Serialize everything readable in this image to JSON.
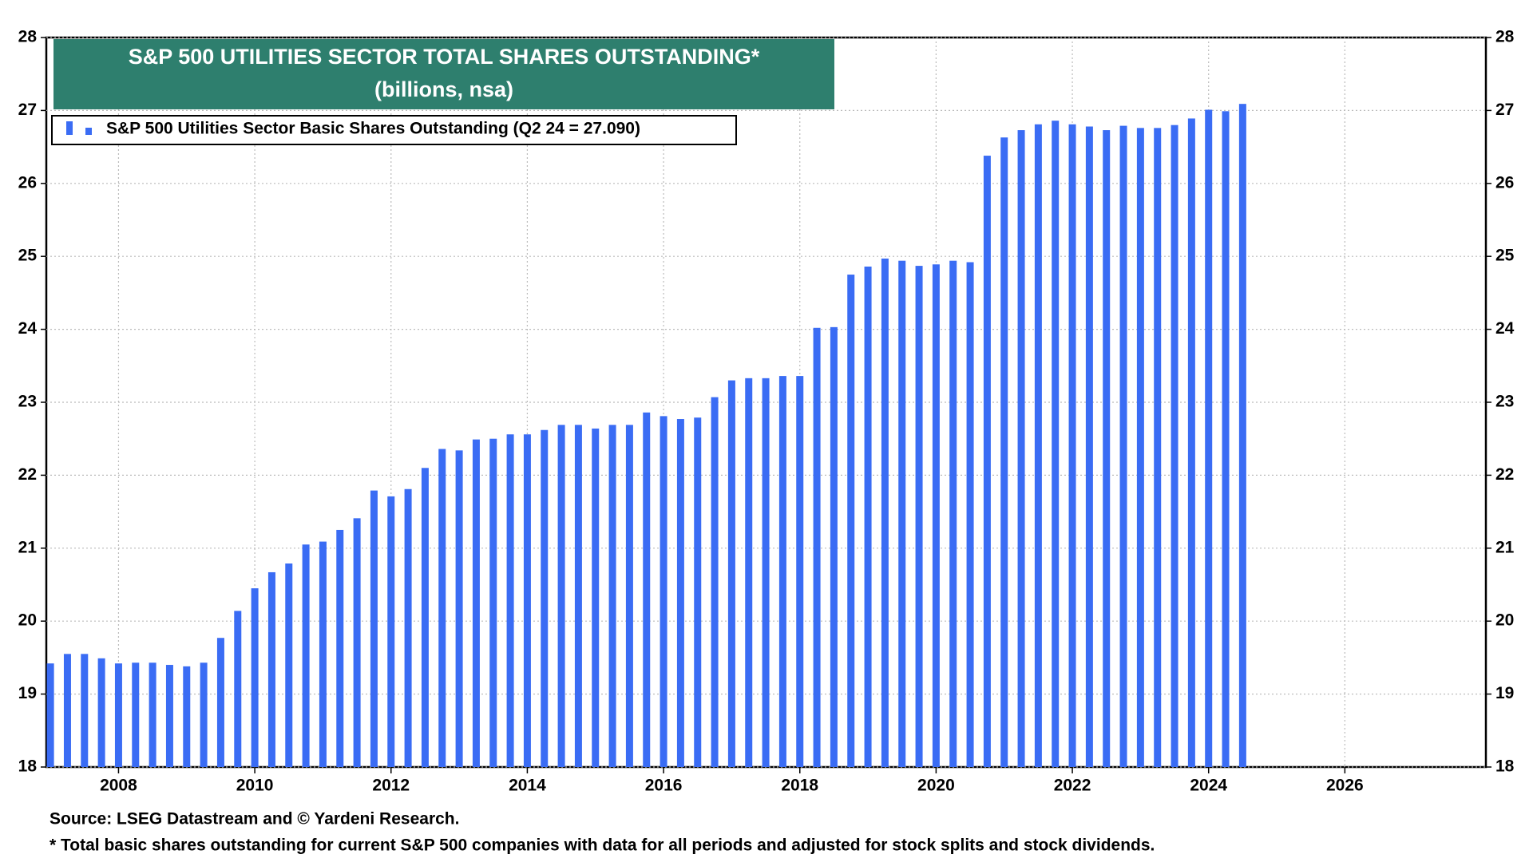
{
  "chart_data": {
    "type": "bar",
    "title": "S&P 500 UTILITIES SECTOR TOTAL SHARES OUTSTANDING*",
    "subtitle": "(billions, nsa)",
    "source": "Source: LSEG Datastream and © Yardeni Research.",
    "note": "* Total basic shares outstanding for current S&P 500 companies with data for all periods and adjusted for stock splits and stock dividends.",
    "x": [
      2007,
      2007.25,
      2007.5,
      2007.75,
      2008,
      2008.25,
      2008.5,
      2008.75,
      2009,
      2009.25,
      2009.5,
      2009.75,
      2010,
      2010.25,
      2010.5,
      2010.75,
      2011,
      2011.25,
      2011.5,
      2011.75,
      2012,
      2012.25,
      2012.5,
      2012.75,
      2013,
      2013.25,
      2013.5,
      2013.75,
      2014,
      2014.25,
      2014.5,
      2014.75,
      2015,
      2015.25,
      2015.5,
      2015.75,
      2016,
      2016.25,
      2016.5,
      2016.75,
      2017,
      2017.25,
      2017.5,
      2017.75,
      2018,
      2018.25,
      2018.5,
      2018.75,
      2019,
      2019.25,
      2019.5,
      2019.75,
      2020,
      2020.25,
      2020.5,
      2020.75,
      2021,
      2021.25,
      2021.5,
      2021.75,
      2022,
      2022.25,
      2022.5,
      2022.75,
      2023,
      2023.25,
      2023.5,
      2023.75,
      2024,
      2024.25,
      2024.5
    ],
    "series": [
      {
        "name": "S&P 500 Utilities Sector Basic Shares Outstanding (Q2 24 = 27.090)",
        "color": "#3a6cf4",
        "values": [
          19.42,
          19.55,
          19.55,
          19.49,
          19.42,
          19.43,
          19.43,
          19.4,
          19.38,
          19.43,
          19.77,
          20.14,
          20.45,
          20.67,
          20.79,
          21.05,
          21.09,
          21.25,
          21.41,
          21.79,
          21.71,
          21.81,
          22.1,
          22.36,
          22.34,
          22.49,
          22.5,
          22.56,
          22.56,
          22.62,
          22.69,
          22.69,
          22.64,
          22.69,
          22.69,
          22.86,
          22.81,
          22.77,
          22.79,
          23.07,
          23.3,
          23.33,
          23.33,
          23.36,
          23.36,
          24.02,
          24.03,
          24.75,
          24.86,
          24.97,
          24.94,
          24.87,
          24.89,
          24.94,
          24.92,
          26.38,
          26.63,
          26.73,
          26.81,
          26.86,
          26.81,
          26.78,
          26.73,
          26.79,
          26.76,
          26.76,
          26.8,
          26.89,
          27.01,
          26.99,
          27.09
        ]
      }
    ],
    "xlim": [
      2006.94,
      2028.07
    ],
    "xticks": [
      2008,
      2010,
      2012,
      2014,
      2016,
      2018,
      2020,
      2022,
      2024,
      2026
    ],
    "ylim": [
      18,
      28
    ],
    "yticks": [
      18,
      19,
      20,
      21,
      22,
      23,
      24,
      25,
      26,
      27,
      28
    ],
    "grid": true
  }
}
